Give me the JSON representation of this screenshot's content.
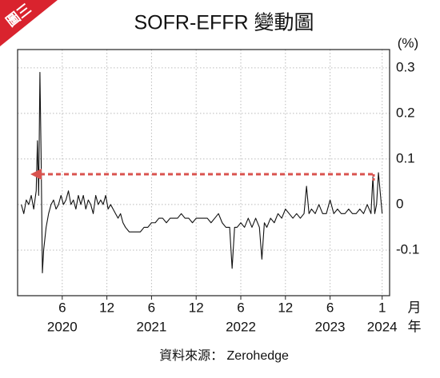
{
  "chart_data": {
    "type": "line",
    "tag": "圖三",
    "title": "SOFR-EFFR 變動圖",
    "y_unit": "(%)",
    "x_unit_month": "月",
    "x_unit_year": "年",
    "source": "資料來源： Zerohedge",
    "color": "#111111",
    "grid": true,
    "xlim": [
      "2019-12",
      "2024-02"
    ],
    "ylim": [
      -0.2,
      0.34
    ],
    "yticks": [
      0.3,
      0.2,
      0.1,
      0,
      -0.1
    ],
    "xticks": [
      {
        "value": "2020-06",
        "label": "6"
      },
      {
        "value": "2020-12",
        "label": "12"
      },
      {
        "value": "2021-06",
        "label": "6"
      },
      {
        "value": "2021-12",
        "label": "12"
      },
      {
        "value": "2022-06",
        "label": "6"
      },
      {
        "value": "2022-12",
        "label": "12"
      },
      {
        "value": "2023-06",
        "label": "6"
      },
      {
        "value": "2024-01",
        "label": "1"
      }
    ],
    "year_ticks": [
      {
        "value": "2020-06",
        "label": "2020"
      },
      {
        "value": "2021-06",
        "label": "2021"
      },
      {
        "value": "2022-06",
        "label": "2022"
      },
      {
        "value": "2023-06",
        "label": "2023"
      },
      {
        "value": "2024-01",
        "label": "2024"
      }
    ],
    "x": [
      "2020-01",
      "2020-01",
      "2020-01",
      "2020-02",
      "2020-02",
      "2020-02",
      "2020-03",
      "2020-03",
      "2020-03",
      "2020-03",
      "2020-03",
      "2020-03",
      "2020-04",
      "2020-04",
      "2020-04",
      "2020-05",
      "2020-05",
      "2020-05",
      "2020-06",
      "2020-06",
      "2020-06",
      "2020-07",
      "2020-07",
      "2020-07",
      "2020-08",
      "2020-08",
      "2020-08",
      "2020-09",
      "2020-09",
      "2020-09",
      "2020-10",
      "2020-10",
      "2020-10",
      "2020-11",
      "2020-11",
      "2020-11",
      "2020-12",
      "2020-12",
      "2020-12",
      "2021-01",
      "2021-01",
      "2021-01",
      "2021-02",
      "2021-02",
      "2021-02",
      "2021-03",
      "2021-03",
      "2021-04",
      "2021-04",
      "2021-05",
      "2021-05",
      "2021-06",
      "2021-06",
      "2021-07",
      "2021-07",
      "2021-08",
      "2021-08",
      "2021-09",
      "2021-09",
      "2021-10",
      "2021-10",
      "2021-11",
      "2021-11",
      "2021-12",
      "2021-12",
      "2022-01",
      "2022-01",
      "2022-02",
      "2022-02",
      "2022-03",
      "2022-03",
      "2022-04",
      "2022-04",
      "2022-05",
      "2022-05",
      "2022-05",
      "2022-06",
      "2022-06",
      "2022-07",
      "2022-07",
      "2022-08",
      "2022-08",
      "2022-09",
      "2022-09",
      "2022-09",
      "2022-10",
      "2022-10",
      "2022-11",
      "2022-11",
      "2022-12",
      "2022-12",
      "2023-01",
      "2023-01",
      "2023-02",
      "2023-02",
      "2023-03",
      "2023-03",
      "2023-03",
      "2023-04",
      "2023-04",
      "2023-05",
      "2023-05",
      "2023-06",
      "2023-06",
      "2023-07",
      "2023-07",
      "2023-08",
      "2023-08",
      "2023-09",
      "2023-09",
      "2023-10",
      "2023-10",
      "2023-11",
      "2023-11",
      "2023-12",
      "2023-12",
      "2023-12",
      "2023-12",
      "2024-01",
      "2024-01"
    ],
    "values": [
      0,
      -0.02,
      0.01,
      0,
      0.02,
      -0.01,
      0.03,
      0.14,
      0.02,
      0.29,
      0.1,
      -0.15,
      -0.1,
      -0.05,
      -0.02,
      0,
      0.01,
      -0.01,
      0,
      0.02,
      0,
      0.01,
      0.03,
      0,
      0.01,
      -0.01,
      0.02,
      0,
      0.02,
      -0.01,
      0.01,
      0,
      -0.02,
      0.02,
      0,
      0.01,
      0,
      0.02,
      -0.01,
      0,
      -0.01,
      -0.02,
      -0.03,
      -0.02,
      -0.04,
      -0.05,
      -0.06,
      -0.06,
      -0.06,
      -0.06,
      -0.05,
      -0.05,
      -0.04,
      -0.04,
      -0.03,
      -0.03,
      -0.04,
      -0.03,
      -0.03,
      -0.03,
      -0.02,
      -0.03,
      -0.03,
      -0.04,
      -0.03,
      -0.03,
      -0.03,
      -0.03,
      -0.04,
      -0.03,
      -0.02,
      -0.04,
      -0.05,
      -0.05,
      -0.14,
      -0.05,
      -0.05,
      -0.04,
      -0.05,
      -0.03,
      -0.05,
      -0.03,
      -0.05,
      -0.12,
      -0.04,
      -0.05,
      -0.03,
      -0.04,
      -0.02,
      -0.03,
      -0.01,
      -0.02,
      -0.03,
      -0.02,
      -0.03,
      -0.02,
      0.04,
      -0.02,
      -0.01,
      -0.02,
      0,
      -0.02,
      -0.02,
      0.01,
      -0.02,
      -0.01,
      -0.02,
      -0.02,
      -0.01,
      -0.02,
      -0.02,
      -0.01,
      -0.02,
      0,
      -0.02,
      0.06,
      -0.02,
      0,
      0.07,
      -0.02
    ]
  }
}
